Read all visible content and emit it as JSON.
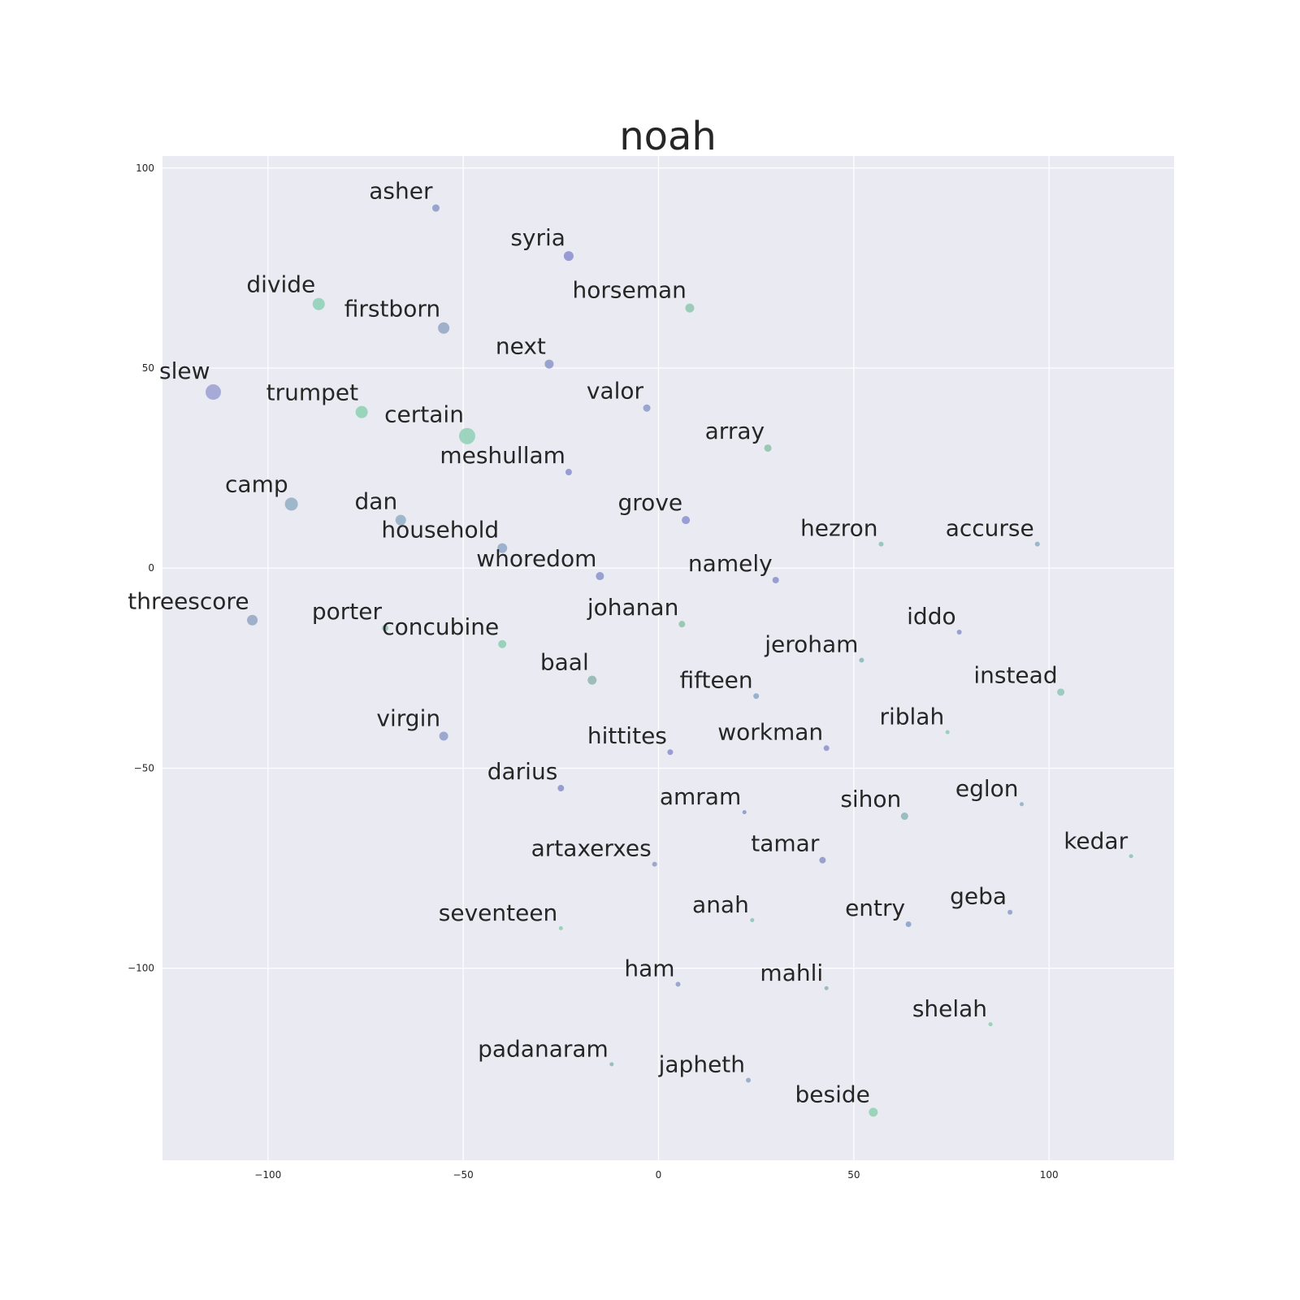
{
  "chart_data": {
    "type": "scatter",
    "title": "noah",
    "xlabel": "",
    "ylabel": "",
    "xlim": [
      -127,
      132
    ],
    "ylim": [
      -148,
      103
    ],
    "xticks": [
      -100,
      -50,
      0,
      50,
      100
    ],
    "yticks": [
      100,
      50,
      0,
      -50,
      -100
    ],
    "xtick_labels": [
      "−100",
      "−50",
      "0",
      "50",
      "100"
    ],
    "ytick_labels": [
      "100",
      "50",
      "0",
      "−50",
      "−100"
    ],
    "grid": true,
    "background": "#eaeaf2",
    "grid_color": "#ffffff",
    "points": [
      {
        "label": "asher",
        "x": -57,
        "y": 90,
        "size": 4.5,
        "color": "#8e9cc6"
      },
      {
        "label": "syria",
        "x": -23,
        "y": 78,
        "size": 6,
        "color": "#8f92d0"
      },
      {
        "label": "divide",
        "x": -87,
        "y": 66,
        "size": 7.5,
        "color": "#91d1b9"
      },
      {
        "label": "horseman",
        "x": 8,
        "y": 65,
        "size": 5.5,
        "color": "#93c8b3"
      },
      {
        "label": "firstborn",
        "x": -55,
        "y": 60,
        "size": 7,
        "color": "#96aac5"
      },
      {
        "label": "next",
        "x": -28,
        "y": 51,
        "size": 5.5,
        "color": "#8f9bcc"
      },
      {
        "label": "slew",
        "x": -114,
        "y": 44,
        "size": 9.5,
        "color": "#9fa3d4"
      },
      {
        "label": "trumpet",
        "x": -76,
        "y": 39,
        "size": 7.5,
        "color": "#91d1b4"
      },
      {
        "label": "valor",
        "x": -3,
        "y": 40,
        "size": 4.5,
        "color": "#8f9fcc"
      },
      {
        "label": "certain",
        "x": -49,
        "y": 33,
        "size": 10,
        "color": "#94d2b9"
      },
      {
        "label": "array",
        "x": 28,
        "y": 30,
        "size": 4.5,
        "color": "#91c4ad"
      },
      {
        "label": "meshullam",
        "x": -23,
        "y": 24,
        "size": 4,
        "color": "#8f93d0"
      },
      {
        "label": "camp",
        "x": -94,
        "y": 16,
        "size": 8,
        "color": "#96b1c6"
      },
      {
        "label": "dan",
        "x": -66,
        "y": 12,
        "size": 6.5,
        "color": "#96b1c6"
      },
      {
        "label": "grove",
        "x": 7,
        "y": 12,
        "size": 5,
        "color": "#8f95d0"
      },
      {
        "label": "hezron",
        "x": 57,
        "y": 6,
        "size": 3,
        "color": "#91c4b9"
      },
      {
        "label": "accurse",
        "x": 97,
        "y": 6,
        "size": 3,
        "color": "#91b1c6"
      },
      {
        "label": "household",
        "x": -40,
        "y": 5,
        "size": 6,
        "color": "#96abcb"
      },
      {
        "label": "whoredom",
        "x": -15,
        "y": -2,
        "size": 5,
        "color": "#8f98cb"
      },
      {
        "label": "namely",
        "x": 30,
        "y": -3,
        "size": 4,
        "color": "#8f96d0"
      },
      {
        "label": "threescore",
        "x": -104,
        "y": -13,
        "size": 6.5,
        "color": "#96aac5"
      },
      {
        "label": "porter",
        "x": -70,
        "y": -15,
        "size": 4,
        "color": "#91c4b9"
      },
      {
        "label": "johanan",
        "x": 6,
        "y": -14,
        "size": 4,
        "color": "#91c4ad"
      },
      {
        "label": "iddo",
        "x": 77,
        "y": -16,
        "size": 3,
        "color": "#8f98cb"
      },
      {
        "label": "concubine",
        "x": -40,
        "y": -19,
        "size": 5,
        "color": "#91ceb5"
      },
      {
        "label": "jeroham",
        "x": 52,
        "y": -23,
        "size": 3,
        "color": "#93b8b9"
      },
      {
        "label": "baal",
        "x": -17,
        "y": -28,
        "size": 5.5,
        "color": "#93b8b3"
      },
      {
        "label": "fifteen",
        "x": 25,
        "y": -32,
        "size": 3.5,
        "color": "#91abc6"
      },
      {
        "label": "instead",
        "x": 103,
        "y": -31,
        "size": 4.5,
        "color": "#93c8b9"
      },
      {
        "label": "riblah",
        "x": 74,
        "y": -41,
        "size": 2.5,
        "color": "#91ceb5"
      },
      {
        "label": "virgin",
        "x": -55,
        "y": -42,
        "size": 5.5,
        "color": "#93a2cb"
      },
      {
        "label": "hittites",
        "x": 3,
        "y": -46,
        "size": 3.5,
        "color": "#8f96d0"
      },
      {
        "label": "workman",
        "x": 43,
        "y": -45,
        "size": 3.5,
        "color": "#8f96d0"
      },
      {
        "label": "darius",
        "x": -25,
        "y": -55,
        "size": 4,
        "color": "#8f93d0"
      },
      {
        "label": "amram",
        "x": 22,
        "y": -61,
        "size": 2.5,
        "color": "#8f98cb"
      },
      {
        "label": "eglon",
        "x": 93,
        "y": -59,
        "size": 2.5,
        "color": "#91b1c6"
      },
      {
        "label": "sihon",
        "x": 63,
        "y": -62,
        "size": 4.5,
        "color": "#91b8b9"
      },
      {
        "label": "kedar",
        "x": 121,
        "y": -72,
        "size": 2.5,
        "color": "#91c4b9"
      },
      {
        "label": "tamar",
        "x": 42,
        "y": -73,
        "size": 4,
        "color": "#8f98cb"
      },
      {
        "label": "artaxerxes",
        "x": -1,
        "y": -74,
        "size": 3,
        "color": "#91a2c6"
      },
      {
        "label": "geba",
        "x": 90,
        "y": -86,
        "size": 3,
        "color": "#8fa2cb"
      },
      {
        "label": "anah",
        "x": 24,
        "y": -88,
        "size": 2.5,
        "color": "#91c4b9"
      },
      {
        "label": "entry",
        "x": 64,
        "y": -89,
        "size": 3.5,
        "color": "#8fa2cb"
      },
      {
        "label": "seventeen",
        "x": -25,
        "y": -90,
        "size": 2.5,
        "color": "#91ceb5"
      },
      {
        "label": "ham",
        "x": 5,
        "y": -104,
        "size": 3,
        "color": "#91a2c6"
      },
      {
        "label": "mahli",
        "x": 43,
        "y": -105,
        "size": 2.5,
        "color": "#91b8b3"
      },
      {
        "label": "shelah",
        "x": 85,
        "y": -114,
        "size": 2.5,
        "color": "#91ceb5"
      },
      {
        "label": "padanaram",
        "x": -12,
        "y": -124,
        "size": 2.5,
        "color": "#91b8b9"
      },
      {
        "label": "japheth",
        "x": 23,
        "y": -128,
        "size": 3,
        "color": "#91abc6"
      },
      {
        "label": "beside",
        "x": 55,
        "y": -136,
        "size": 5.5,
        "color": "#91d1b4"
      }
    ]
  }
}
